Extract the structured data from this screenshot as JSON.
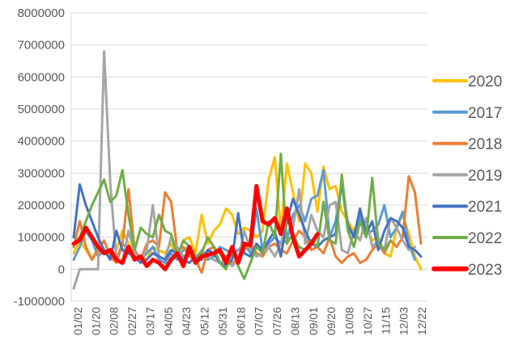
{
  "chart_data": {
    "type": "line",
    "ylim": [
      -1000000,
      8000000
    ],
    "yticks": [
      -1000000,
      0,
      1000000,
      2000000,
      3000000,
      4000000,
      5000000,
      6000000,
      7000000,
      8000000
    ],
    "ytick_labels": [
      "-1000000",
      "0",
      "1000000",
      "2000000",
      "3000000",
      "4000000",
      "5000000",
      "6000000",
      "7000000",
      "8000000"
    ],
    "x_tick_labels": [
      "01/02",
      "01/20",
      "02/08",
      "02/27",
      "03/17",
      "04/05",
      "04/23",
      "05/12",
      "05/31",
      "06/18",
      "07/07",
      "07/26",
      "08/13",
      "09/01",
      "09/20",
      "10/08",
      "10/27",
      "11/15",
      "12/03",
      "12/22"
    ],
    "grid": "horizontal",
    "legend_position": "right",
    "series": [
      {
        "name": "2020",
        "color": "#FFC000",
        "width": 3,
        "values": [
          500000,
          900000,
          600000,
          300000,
          700000,
          500000,
          400000,
          600000,
          1200000,
          800000,
          500000,
          400000,
          300000,
          700000,
          600000,
          500000,
          800000,
          400000,
          900000,
          1000000,
          500000,
          1700000,
          800000,
          1200000,
          1400000,
          1900000,
          1700000,
          1100000,
          1300000,
          1200000,
          1000000,
          1200000,
          2800000,
          3500000,
          1200000,
          3300000,
          2400000,
          1500000,
          3300000,
          3000000,
          1800000,
          3200000,
          2500000,
          2600000,
          1800000,
          1500000,
          1200000,
          1600000,
          1300000,
          900000,
          1000000,
          500000,
          400000,
          1300000,
          1700000,
          1100000,
          400000,
          0
        ]
      },
      {
        "name": "2017",
        "color": "#5B9BD5",
        "width": 3,
        "values": [
          300000,
          700000,
          1200000,
          900000,
          400000,
          600000,
          500000,
          300000,
          800000,
          600000,
          400000,
          300000,
          500000,
          700000,
          300000,
          200000,
          500000,
          300000,
          600000,
          700000,
          400000,
          500000,
          300000,
          400000,
          700000,
          600000,
          500000,
          600000,
          800000,
          500000,
          1900000,
          600000,
          800000,
          1000000,
          800000,
          900000,
          1700000,
          2000000,
          1500000,
          2200000,
          2300000,
          3100000,
          1000000,
          1500000,
          2700000,
          1200000,
          1100000,
          1700000,
          1100000,
          1200000,
          1400000,
          2000000,
          1000000,
          1300000,
          1800000,
          800000,
          300000
        ]
      },
      {
        "name": "2018",
        "color": "#ED7D31",
        "width": 3,
        "values": [
          700000,
          1500000,
          700000,
          300000,
          600000,
          900000,
          400000,
          200000,
          800000,
          2500000,
          600000,
          300000,
          800000,
          900000,
          700000,
          2400000,
          2100000,
          600000,
          700000,
          400000,
          300000,
          -100000,
          600000,
          700000,
          500000,
          400000,
          200000,
          300000,
          600000,
          800000,
          500000,
          400000,
          700000,
          800000,
          600000,
          500000,
          900000,
          1200000,
          1000000,
          600000,
          700000,
          500000,
          1000000,
          400000,
          200000,
          400000,
          500000,
          200000,
          300000,
          600000,
          800000,
          500000,
          900000,
          700000,
          1000000,
          2900000,
          2400000,
          800000
        ]
      },
      {
        "name": "2019",
        "color": "#A5A5A5",
        "width": 3,
        "values": [
          -600000,
          0,
          0,
          0,
          0,
          6800000,
          2700000,
          300000,
          200000,
          1200000,
          500000,
          300000,
          600000,
          2000000,
          400000,
          300000,
          1000000,
          700000,
          400000,
          500000,
          300000,
          600000,
          400000,
          300000,
          200000,
          300000,
          100000,
          300000,
          1200000,
          600000,
          400000,
          500000,
          700000,
          400000,
          800000,
          1500000,
          1300000,
          2500000,
          800000,
          1700000,
          1200000,
          1000000,
          2000000,
          2100000,
          600000,
          500000,
          1200000,
          900000,
          1600000,
          700000,
          900000,
          600000,
          1600000,
          1300000,
          900000,
          600000,
          700000
        ]
      },
      {
        "name": "2021",
        "color": "#4472C4",
        "width": 3,
        "values": [
          1000000,
          2650000,
          2000000,
          1500000,
          1000000,
          600000,
          300000,
          1200000,
          600000,
          500000,
          400000,
          200000,
          300000,
          500000,
          400000,
          300000,
          600000,
          500000,
          300000,
          200000,
          400000,
          300000,
          600000,
          500000,
          200000,
          100000,
          300000,
          1750000,
          500000,
          400000,
          800000,
          600000,
          900000,
          1200000,
          400000,
          1500000,
          2200000,
          1700000,
          1200000,
          800000,
          700000,
          900000,
          1000000,
          1100000,
          2750000,
          1400000,
          1000000,
          1900000,
          1100000,
          1500000,
          600000,
          1200000,
          1600000,
          1500000,
          1300000,
          700000,
          600000,
          400000
        ]
      },
      {
        "name": "2022",
        "color": "#70AD47",
        "width": 3,
        "values": [
          800000,
          1000000,
          1500000,
          2000000,
          2400000,
          2800000,
          2100000,
          2300000,
          3100000,
          1700000,
          600000,
          1300000,
          1100000,
          1000000,
          1700000,
          1200000,
          1100000,
          400000,
          900000,
          700000,
          400000,
          500000,
          1000000,
          700000,
          200000,
          0,
          600000,
          100000,
          -300000,
          200000,
          700000,
          500000,
          1500000,
          1000000,
          3600000,
          800000,
          1100000,
          700000,
          600000,
          900000,
          700000,
          2100000,
          900000,
          800000,
          2950000,
          1200000,
          700000,
          1500000,
          1000000,
          2850000,
          800000,
          600000,
          900000
        ]
      },
      {
        "name": "2023",
        "color": "#FF0000",
        "width": 5,
        "values": [
          800000,
          900000,
          1300000,
          1000000,
          700000,
          500000,
          600000,
          300000,
          200000,
          700000,
          300000,
          400000,
          100000,
          300000,
          200000,
          0,
          300000,
          500000,
          100000,
          700000,
          200000,
          400000,
          450000,
          500000,
          600000,
          200000,
          700000,
          200000,
          800000,
          750000,
          2600000,
          1500000,
          1400000,
          1600000,
          1100000,
          1900000,
          1000000,
          400000,
          600000,
          800000,
          1100000
        ]
      }
    ]
  }
}
